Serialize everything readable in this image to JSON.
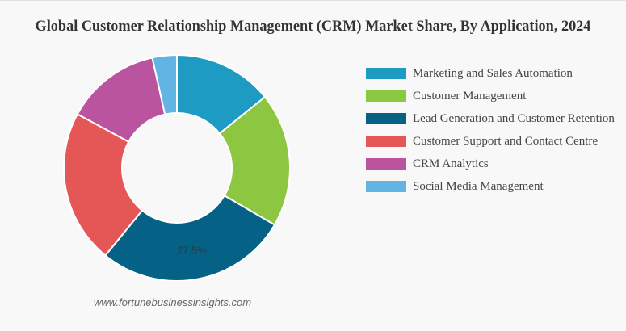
{
  "title": "Global Customer Relationship Management (CRM) Market Share, By Application, 2024",
  "watermark": "www.fortunebusinessinsights.com",
  "chart_data": {
    "type": "pie",
    "variant": "donut",
    "title": "Global Customer Relationship Management (CRM) Market Share, By Application, 2024",
    "categories": [
      "Marketing and Sales Automation",
      "Customer Management",
      "Lead Generation and Customer Retention",
      "Customer Support and Contact Centre",
      "CRM Analytics",
      "Social Media Management"
    ],
    "values": [
      14.2,
      19.2,
      27.5,
      22.0,
      13.6,
      3.5
    ],
    "colors": [
      "#1e9bc3",
      "#8dc641",
      "#066186",
      "#e55757",
      "#bb549f",
      "#62b4e3"
    ],
    "data_labels": [
      null,
      null,
      "27.5%",
      null,
      null,
      null
    ],
    "legend_position": "right",
    "start_angle_deg": 0
  },
  "legend": {
    "items": [
      {
        "label": "Marketing and Sales Automation",
        "color": "#1e9bc3"
      },
      {
        "label": "Customer Management",
        "color": "#8dc641"
      },
      {
        "label": "Lead Generation and Customer Retention",
        "color": "#066186"
      },
      {
        "label": "Customer Support and Contact Centre",
        "color": "#e55757"
      },
      {
        "label": "CRM Analytics",
        "color": "#bb549f"
      },
      {
        "label": "Social Media Management",
        "color": "#62b4e3"
      }
    ]
  }
}
